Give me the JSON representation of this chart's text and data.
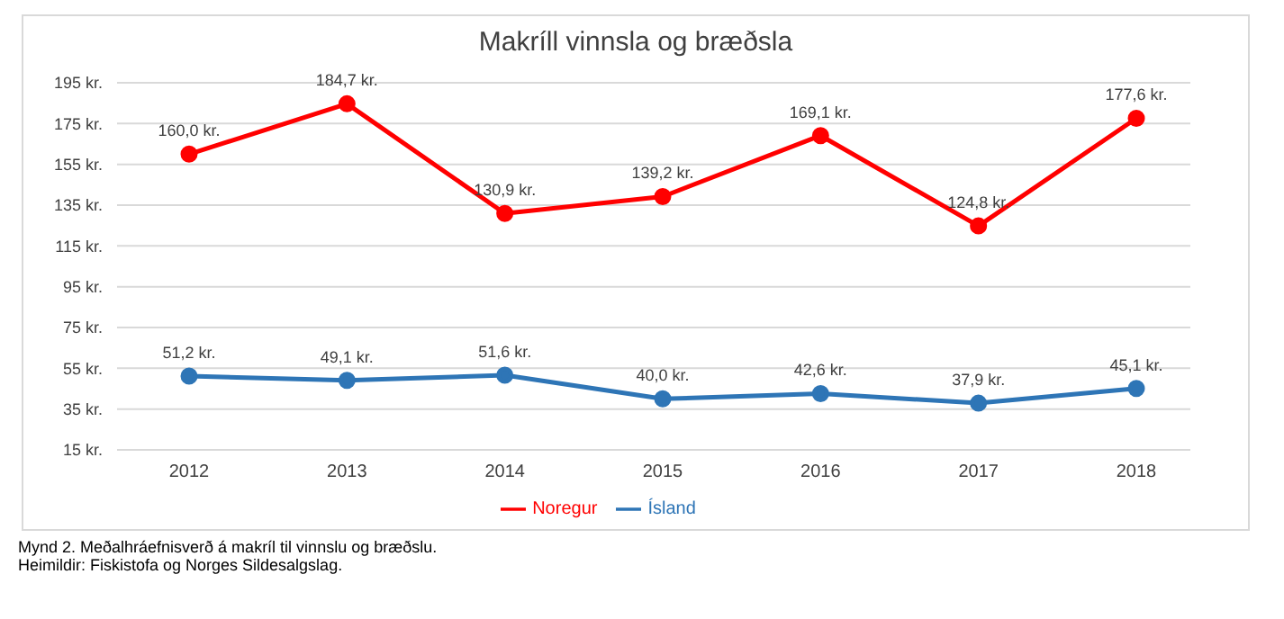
{
  "chart_data": {
    "type": "line",
    "title": "Makríll vinnsla og bræðsla",
    "categories": [
      "2012",
      "2013",
      "2014",
      "2015",
      "2016",
      "2017",
      "2018"
    ],
    "series": [
      {
        "name": "Ísland",
        "color": "#2e75b6",
        "values": [
          51.2,
          49.1,
          51.6,
          40.0,
          42.6,
          37.9,
          45.1
        ],
        "value_labels": [
          "51,2 kr.",
          "49,1 kr.",
          "51,6 kr.",
          "40,0 kr.",
          "42,6 kr.",
          "37,9 kr.",
          "45,1 kr."
        ]
      },
      {
        "name": "Noregur",
        "color": "#ff0000",
        "values": [
          160.0,
          184.7,
          130.9,
          139.2,
          169.1,
          124.8,
          177.6
        ],
        "value_labels": [
          "160,0 kr.",
          "184,7 kr.",
          "130,9 kr.",
          "139,2 kr.",
          "169,1 kr.",
          "124,8 kr.",
          "177,6 kr."
        ]
      }
    ],
    "ylim": [
      15,
      195
    ],
    "yticks": [
      {
        "value": 15,
        "label": "15 kr."
      },
      {
        "value": 35,
        "label": "35 kr."
      },
      {
        "value": 55,
        "label": "55 kr."
      },
      {
        "value": 75,
        "label": "75 kr."
      },
      {
        "value": 95,
        "label": "95 kr."
      },
      {
        "value": 115,
        "label": "115 kr."
      },
      {
        "value": 135,
        "label": "135 kr."
      },
      {
        "value": 155,
        "label": "155 kr."
      },
      {
        "value": 175,
        "label": "175 kr."
      },
      {
        "value": 195,
        "label": "195 kr."
      }
    ],
    "grid": "y",
    "legend": "bottom",
    "marker": "circle",
    "line_style": "solid",
    "annotations": [
      "Mynd 2.  Meðalhráefnisverð á makríl til vinnslu og bræðslu.",
      "Heimildir: Fiskistofa og Norges Sildesalgslag."
    ]
  }
}
